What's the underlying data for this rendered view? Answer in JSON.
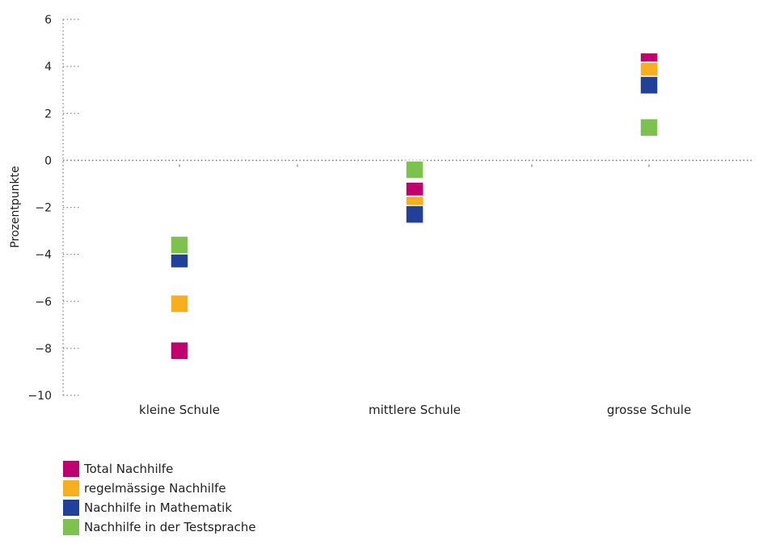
{
  "chart_data": {
    "type": "scatter",
    "ylabel": "Prozentpunkte",
    "ylim": [
      -10,
      6
    ],
    "yticks": [
      6,
      4,
      2,
      0,
      -2,
      -4,
      -6,
      -8,
      -10
    ],
    "ytick_labels": [
      "6",
      "4",
      "2",
      "0",
      "−2",
      "−4",
      "−6",
      "−8",
      "−10"
    ],
    "categories": [
      "kleine Schule",
      "mittlere Schule",
      "grosse Schule"
    ],
    "series": [
      {
        "name": "Total Nachhilfe",
        "color": "#C0006F",
        "values": [
          -8.1,
          -1.3,
          4.2
        ]
      },
      {
        "name": "regelmässige Nachhilfe",
        "color": "#F9AE20",
        "values": [
          -6.1,
          -1.9,
          3.8
        ]
      },
      {
        "name": "Nachhilfe in Mathematik",
        "color": "#21409A",
        "values": [
          -4.2,
          -2.3,
          3.2
        ]
      },
      {
        "name": "Nachhilfe in der Testsprache",
        "color": "#7DC24F",
        "values": [
          -3.6,
          -0.4,
          1.4
        ]
      }
    ],
    "grid": false,
    "legend_position": "bottom-left"
  }
}
